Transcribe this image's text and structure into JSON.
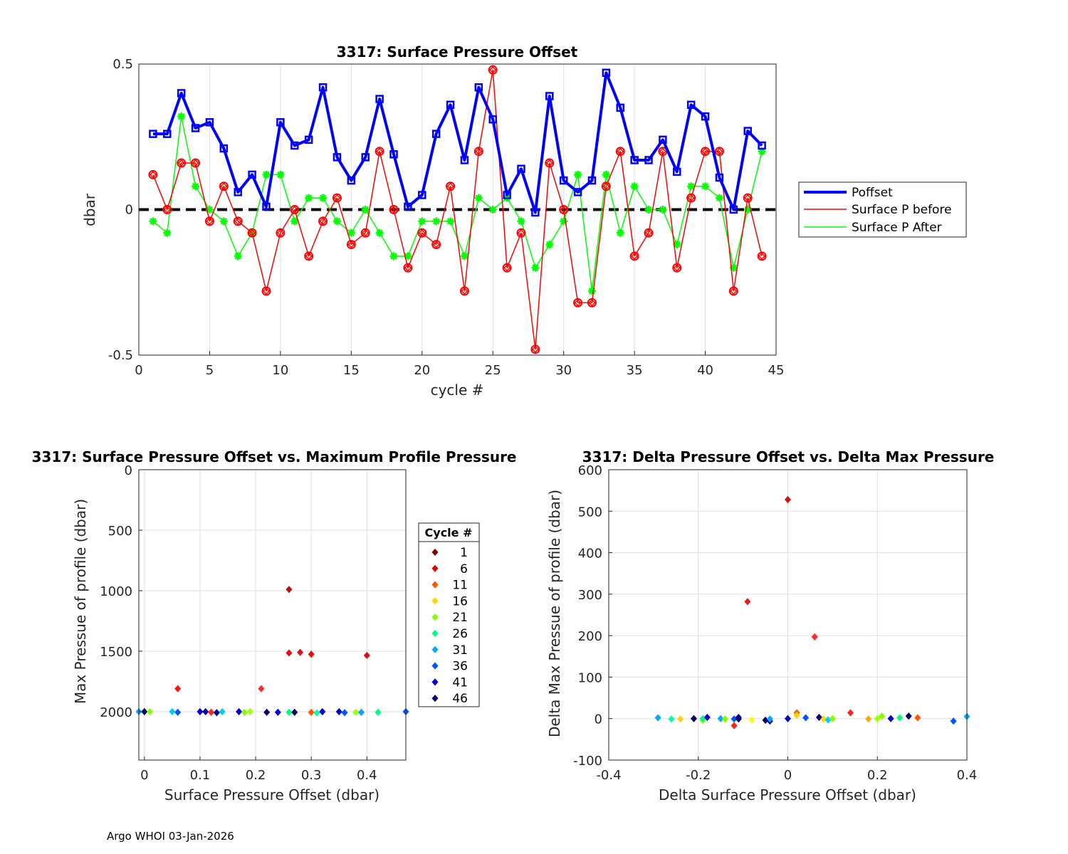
{
  "footer": "Argo WHOI 03-Jan-2026",
  "colors": {
    "poffset": "#0000ff",
    "before": "#ff0000",
    "after": "#00ff00",
    "zero": "#000000",
    "grid": "#dfdfdf"
  },
  "chart_data": [
    {
      "type": "line",
      "title": "3317: Surface Pressure Offset",
      "xlabel": "cycle #",
      "ylabel": "dbar",
      "xlim": [
        0,
        45
      ],
      "ylim": [
        -0.5,
        0.5
      ],
      "xticks": [
        0,
        5,
        10,
        15,
        20,
        25,
        30,
        35,
        40,
        45
      ],
      "yticks": [
        -0.5,
        0,
        0.5
      ],
      "ytick_labels": [
        "-0.5",
        "0",
        "0.5"
      ],
      "legend": [
        "Poffset",
        "Surface P before",
        "Surface P After"
      ],
      "x": [
        1,
        2,
        3,
        4,
        5,
        6,
        7,
        8,
        9,
        10,
        11,
        12,
        13,
        14,
        15,
        16,
        17,
        18,
        19,
        20,
        21,
        22,
        23,
        24,
        25,
        26,
        27,
        28,
        29,
        30,
        31,
        32,
        33,
        34,
        35,
        36,
        37,
        38,
        39,
        40,
        41,
        42,
        43,
        44
      ],
      "series": [
        {
          "name": "Poffset",
          "values": [
            0.26,
            0.26,
            0.4,
            0.28,
            0.3,
            0.21,
            0.06,
            0.12,
            0.01,
            0.3,
            0.22,
            0.24,
            0.42,
            0.18,
            0.1,
            0.18,
            0.38,
            0.19,
            0.01,
            0.05,
            0.26,
            0.36,
            0.17,
            0.42,
            0.31,
            0.05,
            0.14,
            -0.01,
            0.39,
            0.1,
            0.06,
            0.1,
            0.47,
            0.35,
            0.17,
            0.17,
            0.24,
            0.13,
            0.36,
            0.32,
            0.11,
            0.0,
            0.27,
            0.22
          ]
        },
        {
          "name": "Surface P before",
          "values": [
            0.12,
            0.0,
            0.16,
            0.16,
            -0.04,
            0.08,
            -0.04,
            -0.08,
            -0.28,
            -0.08,
            0.0,
            -0.16,
            -0.04,
            0.04,
            -0.12,
            -0.08,
            0.2,
            0.0,
            -0.2,
            -0.08,
            -0.12,
            0.08,
            -0.28,
            0.2,
            0.48,
            -0.2,
            -0.08,
            -0.48,
            0.16,
            0.0,
            -0.32,
            -0.32,
            0.08,
            0.2,
            -0.16,
            -0.08,
            0.2,
            -0.2,
            0.04,
            0.2,
            0.2,
            -0.28,
            0.04,
            -0.16
          ]
        },
        {
          "name": "Surface P After",
          "values": [
            -0.04,
            -0.08,
            0.32,
            0.08,
            0.0,
            -0.04,
            -0.16,
            -0.08,
            0.12,
            0.12,
            -0.04,
            0.04,
            0.04,
            -0.04,
            -0.08,
            0.0,
            -0.08,
            -0.16,
            -0.16,
            -0.04,
            -0.04,
            -0.04,
            -0.16,
            0.04,
            0.0,
            0.04,
            -0.04,
            -0.2,
            -0.12,
            -0.04,
            0.12,
            -0.28,
            0.12,
            -0.08,
            0.08,
            0.0,
            0.0,
            -0.12,
            0.08,
            0.08,
            0.04,
            -0.2,
            0.0,
            0.2
          ]
        }
      ]
    },
    {
      "type": "scatter",
      "title": "3317: Surface Pressure Offset vs. Maximum Profile Pressure",
      "xlabel": "Surface Pressure Offset (dbar)",
      "ylabel": "Max Pressue of profile (dbar)",
      "xlim": [
        -0.01,
        0.47
      ],
      "ylim": [
        2400,
        0
      ],
      "xticks": [
        0,
        0.1,
        0.2,
        0.3,
        0.4
      ],
      "xtick_labels": [
        "0",
        "0.1",
        "0.2",
        "0.3",
        "0.4"
      ],
      "yticks": [
        0,
        500,
        1000,
        1500,
        2000
      ],
      "legend_title": "Cycle #",
      "legend_entries": [
        "1",
        "6",
        "11",
        "16",
        "21",
        "26",
        "31",
        "36",
        "41",
        "46"
      ],
      "legend_colors": [
        "#800000",
        "#e00000",
        "#ff5500",
        "#ffd500",
        "#80ff00",
        "#00ff80",
        "#00aaff",
        "#0055ff",
        "#0000d0",
        "#000060"
      ],
      "points": [
        {
          "x": 0.26,
          "y": 990,
          "c": "#b01515"
        },
        {
          "x": 0.06,
          "y": 1810,
          "c": "#ee1a1a"
        },
        {
          "x": 0.21,
          "y": 1810,
          "c": "#ff2a2a"
        },
        {
          "x": 0.26,
          "y": 1515,
          "c": "#e01010"
        },
        {
          "x": 0.28,
          "y": 1510,
          "c": "#e01010"
        },
        {
          "x": 0.3,
          "y": 1525,
          "c": "#e01010"
        },
        {
          "x": 0.4,
          "y": 1535,
          "c": "#e01010"
        },
        {
          "x": -0.01,
          "y": 2000,
          "c": "#00aaff"
        },
        {
          "x": 0.0,
          "y": 2000,
          "c": "#000060"
        },
        {
          "x": 0.01,
          "y": 2000,
          "c": "#80ff00"
        },
        {
          "x": 0.05,
          "y": 2000,
          "c": "#00ccff"
        },
        {
          "x": 0.06,
          "y": 2005,
          "c": "#0055ff"
        },
        {
          "x": 0.1,
          "y": 2000,
          "c": "#0000d0"
        },
        {
          "x": 0.11,
          "y": 2000,
          "c": "#0000a0"
        },
        {
          "x": 0.12,
          "y": 2005,
          "c": "#ff2020"
        },
        {
          "x": 0.13,
          "y": 2008,
          "c": "#0000a0"
        },
        {
          "x": 0.14,
          "y": 2000,
          "c": "#00ccff"
        },
        {
          "x": 0.17,
          "y": 2000,
          "c": "#0000d0"
        },
        {
          "x": 0.18,
          "y": 2005,
          "c": "#80ff00"
        },
        {
          "x": 0.19,
          "y": 2000,
          "c": "#a0ff00"
        },
        {
          "x": 0.22,
          "y": 2005,
          "c": "#000060"
        },
        {
          "x": 0.24,
          "y": 2005,
          "c": "#0000d0"
        },
        {
          "x": 0.26,
          "y": 2005,
          "c": "#00ff80"
        },
        {
          "x": 0.27,
          "y": 2005,
          "c": "#000060"
        },
        {
          "x": 0.3,
          "y": 2005,
          "c": "#ff5500"
        },
        {
          "x": 0.31,
          "y": 2010,
          "c": "#00ffaa"
        },
        {
          "x": 0.32,
          "y": 2000,
          "c": "#0000d0"
        },
        {
          "x": 0.35,
          "y": 2000,
          "c": "#0000d0"
        },
        {
          "x": 0.36,
          "y": 2008,
          "c": "#0055ff"
        },
        {
          "x": 0.38,
          "y": 2005,
          "c": "#a0ff00"
        },
        {
          "x": 0.39,
          "y": 2005,
          "c": "#00aaff"
        },
        {
          "x": 0.42,
          "y": 2005,
          "c": "#00ff80"
        },
        {
          "x": 0.47,
          "y": 2000,
          "c": "#0055ff"
        }
      ]
    },
    {
      "type": "scatter",
      "title": "3317: Delta Pressure Offset vs. Delta Max Pressure",
      "xlabel": "Delta Surface Pressure Offset (dbar)",
      "ylabel": "Delta Max Pressue of profile (dbar)",
      "xlim": [
        -0.4,
        0.4
      ],
      "ylim": [
        -100,
        600
      ],
      "xticks": [
        -0.4,
        -0.2,
        0,
        0.2,
        0.4
      ],
      "xtick_labels": [
        "-0.4",
        "-0.2",
        "0",
        "0.2",
        "0.4"
      ],
      "yticks": [
        -100,
        0,
        100,
        200,
        300,
        400,
        500,
        600
      ],
      "points": [
        {
          "x": 0.0,
          "y": 528,
          "c": "#d81010"
        },
        {
          "x": -0.09,
          "y": 282,
          "c": "#ee1a1a"
        },
        {
          "x": 0.06,
          "y": 197,
          "c": "#ff2a2a"
        },
        {
          "x": -0.29,
          "y": 2,
          "c": "#00aaff"
        },
        {
          "x": -0.26,
          "y": -1,
          "c": "#00ffaa"
        },
        {
          "x": -0.24,
          "y": -1,
          "c": "#ffd500"
        },
        {
          "x": -0.21,
          "y": 0,
          "c": "#000060"
        },
        {
          "x": -0.19,
          "y": -4,
          "c": "#80ff00"
        },
        {
          "x": -0.19,
          "y": 0,
          "c": "#00ff80"
        },
        {
          "x": -0.18,
          "y": 3,
          "c": "#0000d0"
        },
        {
          "x": -0.15,
          "y": 0,
          "c": "#00aaff"
        },
        {
          "x": -0.14,
          "y": -1,
          "c": "#80ff00"
        },
        {
          "x": -0.12,
          "y": -17,
          "c": "#ff2020"
        },
        {
          "x": -0.12,
          "y": -1,
          "c": "#0055ff"
        },
        {
          "x": -0.11,
          "y": 3,
          "c": "#0000d0"
        },
        {
          "x": -0.11,
          "y": -1,
          "c": "#000060"
        },
        {
          "x": -0.08,
          "y": -3,
          "c": "#ffff00"
        },
        {
          "x": -0.05,
          "y": -4,
          "c": "#000060"
        },
        {
          "x": -0.04,
          "y": -6,
          "c": "#0000a0"
        },
        {
          "x": -0.04,
          "y": -1,
          "c": "#00aaff"
        },
        {
          "x": 0.0,
          "y": 0,
          "c": "#0000d0"
        },
        {
          "x": 0.02,
          "y": 14,
          "c": "#ff5500"
        },
        {
          "x": 0.02,
          "y": 8,
          "c": "#ffd500"
        },
        {
          "x": 0.04,
          "y": 2,
          "c": "#0055ff"
        },
        {
          "x": 0.07,
          "y": 3,
          "c": "#000080"
        },
        {
          "x": 0.08,
          "y": -1,
          "c": "#ffd500"
        },
        {
          "x": 0.09,
          "y": -3,
          "c": "#00ccff"
        },
        {
          "x": 0.1,
          "y": 0,
          "c": "#80ff00"
        },
        {
          "x": 0.14,
          "y": 14,
          "c": "#ff2020"
        },
        {
          "x": 0.18,
          "y": -1,
          "c": "#ffaa00"
        },
        {
          "x": 0.2,
          "y": 0,
          "c": "#a0ff00"
        },
        {
          "x": 0.21,
          "y": 6,
          "c": "#80ff00"
        },
        {
          "x": 0.23,
          "y": 0,
          "c": "#0000d0"
        },
        {
          "x": 0.25,
          "y": 2,
          "c": "#00ff80"
        },
        {
          "x": 0.27,
          "y": 6,
          "c": "#000060"
        },
        {
          "x": 0.29,
          "y": 2,
          "c": "#ff5500"
        },
        {
          "x": 0.37,
          "y": -6,
          "c": "#0055ff"
        },
        {
          "x": 0.4,
          "y": 5,
          "c": "#00aaff"
        }
      ]
    }
  ]
}
